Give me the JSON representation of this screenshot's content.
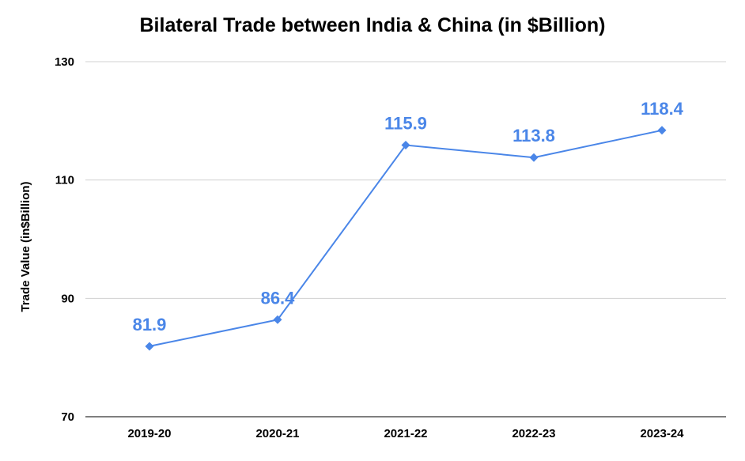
{
  "chart_data": {
    "type": "line",
    "title": "Bilateral Trade between India & China (in $Billion)",
    "xlabel": "",
    "ylabel": "Trade Value (in$Billion)",
    "categories": [
      "2019-20",
      "2020-21",
      "2021-22",
      "2022-23",
      "2023-24"
    ],
    "series": [
      {
        "values": [
          81.9,
          86.4,
          115.9,
          113.8,
          118.4
        ]
      }
    ],
    "data_labels": [
      "81.9",
      "86.4",
      "115.9",
      "113.8",
      "118.4"
    ],
    "ylim": [
      70,
      130
    ],
    "yticks": [
      "70",
      "90",
      "110",
      "130"
    ],
    "grid": true,
    "legend": "none",
    "marker": "diamond",
    "colors": {
      "series": "#4a86e8",
      "grid": "#d0d0d0",
      "baseline": "#333333"
    }
  }
}
